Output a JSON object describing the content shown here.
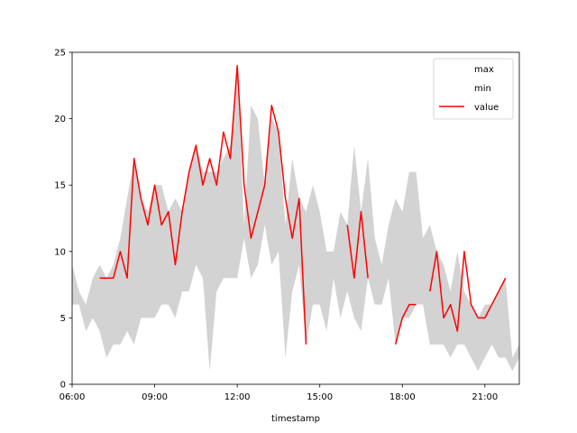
{
  "chart_data": {
    "type": "area",
    "xlabel": "timestamp",
    "ylabel": "",
    "title": "",
    "x_unit": "hours",
    "xlim": [
      6,
      22.25
    ],
    "ylim": [
      0,
      25
    ],
    "x_ticks": [
      {
        "value": 6,
        "label": "06:00"
      },
      {
        "value": 9,
        "label": "09:00"
      },
      {
        "value": 12,
        "label": "12:00"
      },
      {
        "value": 15,
        "label": "15:00"
      },
      {
        "value": 18,
        "label": "18:00"
      },
      {
        "value": 21,
        "label": "21:00"
      }
    ],
    "y_ticks": [
      0,
      5,
      10,
      15,
      20,
      25
    ],
    "grid": false,
    "legend": {
      "placement": "top-right",
      "entries": [
        {
          "name": "max",
          "swatch": "none"
        },
        {
          "name": "min",
          "swatch": "none"
        },
        {
          "name": "value",
          "swatch": "line"
        }
      ]
    },
    "colors": {
      "band": "#d3d3d3",
      "value_line": "#ff0000"
    },
    "band": {
      "x": [
        6.0,
        6.25,
        6.5,
        6.75,
        7.0,
        7.25,
        7.5,
        7.75,
        8.0,
        8.25,
        8.5,
        8.75,
        9.0,
        9.25,
        9.5,
        9.75,
        10.0,
        10.25,
        10.5,
        10.75,
        11.0,
        11.25,
        11.5,
        11.75,
        12.0,
        12.25,
        12.5,
        12.75,
        13.0,
        13.25,
        13.5,
        13.75,
        14.0,
        14.25,
        14.5,
        14.75,
        15.0,
        15.25,
        15.5,
        15.75,
        16.0,
        16.25,
        16.5,
        16.75,
        17.0,
        17.25,
        17.5,
        17.75,
        18.0,
        18.25,
        18.5,
        18.75,
        19.0,
        19.25,
        19.5,
        19.75,
        20.0,
        20.25,
        20.5,
        20.75,
        21.0,
        21.25,
        21.5,
        21.75,
        22.0,
        22.25
      ],
      "max": [
        9,
        7,
        6,
        8,
        9,
        8,
        9,
        11,
        14,
        17,
        14,
        13,
        15,
        15,
        13,
        14,
        13,
        16,
        18,
        16,
        16,
        16,
        17,
        18,
        24,
        12,
        21,
        20,
        15,
        20,
        19,
        12,
        17,
        14,
        13,
        15,
        13,
        10,
        10,
        13,
        12,
        18,
        13,
        17,
        11,
        9,
        12,
        14,
        13,
        16,
        16,
        11,
        12,
        10,
        9,
        7,
        10,
        7,
        6,
        5,
        6,
        6,
        7,
        8,
        2,
        3
      ],
      "min": [
        6,
        6,
        4,
        5,
        4,
        2,
        3,
        3,
        4,
        3,
        5,
        5,
        5,
        6,
        6,
        5,
        7,
        7,
        9,
        8,
        1,
        7,
        8,
        8,
        8,
        11,
        8,
        9,
        12,
        9,
        10,
        2,
        7,
        9,
        3,
        6,
        6,
        4,
        8,
        5,
        7,
        5,
        4,
        8,
        6,
        6,
        8,
        3,
        5,
        5,
        6,
        6,
        3,
        3,
        3,
        2,
        3,
        3,
        2,
        1,
        2,
        3,
        2,
        2,
        1,
        2
      ]
    },
    "series": [
      {
        "name": "value",
        "segments": [
          {
            "x": [
              7.0,
              7.25,
              7.5,
              7.75,
              8.0,
              8.25,
              8.5,
              8.75,
              9.0,
              9.25,
              9.5,
              9.75,
              10.0,
              10.25,
              10.5,
              10.75,
              11.0,
              11.25,
              11.5,
              11.75,
              12.0,
              12.25,
              12.5,
              12.75,
              13.0,
              13.25,
              13.5,
              13.75,
              14.0,
              14.25,
              14.5
            ],
            "y": [
              8,
              8,
              8,
              10,
              8,
              17,
              14,
              12,
              15,
              12,
              13,
              9,
              13,
              16,
              18,
              15,
              17,
              15,
              19,
              17,
              24,
              15,
              11,
              13,
              15,
              21,
              19,
              14,
              11,
              14,
              3
            ]
          },
          {
            "x": [
              16.0,
              16.25,
              16.5,
              16.75
            ],
            "y": [
              12,
              8,
              13,
              8
            ]
          },
          {
            "x": [
              17.75,
              18.0,
              18.25,
              18.5
            ],
            "y": [
              3,
              5,
              6,
              6
            ]
          },
          {
            "x": [
              19.0,
              19.25,
              19.5,
              19.75,
              20.0,
              20.25,
              20.5,
              20.75,
              21.0,
              21.25,
              21.5,
              21.75
            ],
            "y": [
              7,
              10,
              5,
              6,
              4,
              10,
              6,
              5,
              5,
              6,
              7,
              8
            ]
          }
        ]
      }
    ]
  }
}
